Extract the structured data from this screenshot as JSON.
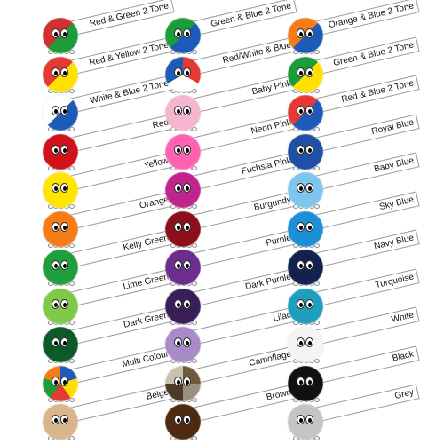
{
  "swatches": [
    {
      "label": "Red & Green 2 Tone",
      "colors": [
        "#d32f2f",
        "#1b9e3a"
      ]
    },
    {
      "label": "Red & Yellow 2 Tone",
      "colors": [
        "#e53935",
        "#ffe000"
      ]
    },
    {
      "label": "White & Blue 2 Tone",
      "colors": [
        "#ffffff",
        "#1e5bb8"
      ]
    },
    {
      "label": "Red",
      "colors": [
        "#d1121b"
      ]
    },
    {
      "label": "Yellow",
      "colors": [
        "#ffe500"
      ]
    },
    {
      "label": "Orange",
      "colors": [
        "#f57c16"
      ]
    },
    {
      "label": "Kelly Green",
      "colors": [
        "#1e9e3c"
      ]
    },
    {
      "label": "Lime Green",
      "colors": [
        "#7ec84a"
      ]
    },
    {
      "label": "Dark Green",
      "colors": [
        "#0c5a2a"
      ]
    },
    {
      "label": "Multi Colour",
      "colors": [
        "#1e5bb8",
        "#ffe000",
        "#e53935",
        "#1b9e3a",
        "#f57c16"
      ]
    },
    {
      "label": "Beige",
      "colors": [
        "#d8b58c"
      ]
    },
    {
      "label": "Green & Blue 2 Tone",
      "colors": [
        "#1b9e3a",
        "#1e5bb8"
      ]
    },
    {
      "label": "Red/White & Blue",
      "colors": [
        "#e53935",
        "#ffffff",
        "#1e5bb8"
      ]
    },
    {
      "label": "Baby Pink",
      "colors": [
        "#f4b6cf"
      ]
    },
    {
      "label": "Neon Pink",
      "colors": [
        "#ff63b0"
      ]
    },
    {
      "label": "Fuchsia Pink",
      "colors": [
        "#c2248f"
      ]
    },
    {
      "label": "Burgundy",
      "colors": [
        "#8c0f1c"
      ]
    },
    {
      "label": "Purple",
      "colors": [
        "#6b2d8f"
      ]
    },
    {
      "label": "Dark Purple",
      "colors": [
        "#3a1e58"
      ]
    },
    {
      "label": "Lilac",
      "colors": [
        "#a88bc7"
      ]
    },
    {
      "label": "Camoflage",
      "colors": [
        "#6e5a3a",
        "#9a9080",
        "#4a3a26",
        "#c9c0ad"
      ]
    },
    {
      "label": "Brown",
      "colors": [
        "#4e2a10"
      ]
    },
    {
      "label": "Orange & Blue 2 Tone",
      "colors": [
        "#f57c16",
        "#1e5bb8"
      ]
    },
    {
      "label": "Green & Blue 2 Tone",
      "colors": [
        "#1b9e3a",
        "#ffe000"
      ]
    },
    {
      "label": "Red & Blue 2 Tone",
      "colors": [
        "#e53935",
        "#1e5bb8"
      ]
    },
    {
      "label": "Royal Blue",
      "colors": [
        "#1f4fa6"
      ]
    },
    {
      "label": "Baby Blue",
      "colors": [
        "#7fc6ee"
      ]
    },
    {
      "label": "Sky Blue",
      "colors": [
        "#1d8fd6"
      ]
    },
    {
      "label": "Navy Blue",
      "colors": [
        "#14204f"
      ]
    },
    {
      "label": "Turquoise",
      "colors": [
        "#1f9fbf"
      ]
    },
    {
      "label": "White",
      "colors": [
        "#f4f4f4"
      ]
    },
    {
      "label": "Black",
      "colors": [
        "#111111"
      ]
    },
    {
      "label": "Grey",
      "colors": [
        "#c2c4c6"
      ]
    }
  ]
}
